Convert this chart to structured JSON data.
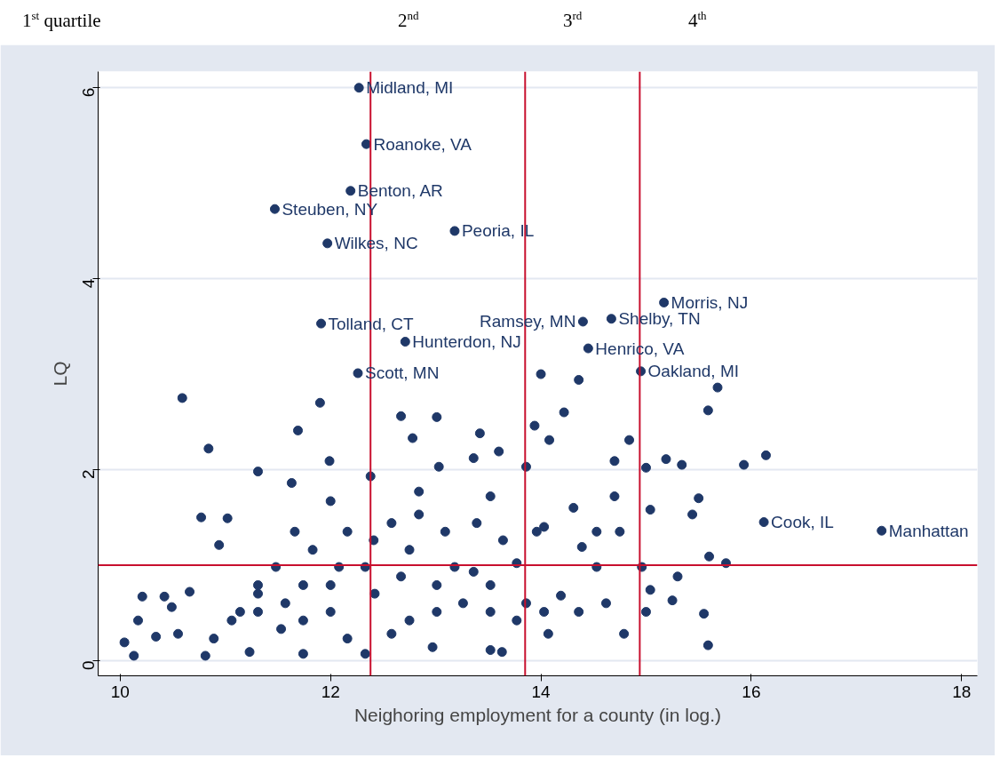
{
  "chart_data": {
    "type": "scatter",
    "xlabel": "Neighoring employment for a county (in log.)",
    "ylabel": "LQ",
    "xlim": [
      9.79,
      18.15
    ],
    "ylim": [
      -0.16,
      6.17
    ],
    "xticks": [
      10,
      12,
      14,
      16,
      18
    ],
    "yticks": [
      0,
      2,
      4,
      6
    ],
    "grid": "y",
    "marker": "circle",
    "ref_lines": [
      {
        "axis": "x",
        "value": 12.38,
        "color": "#c8102e"
      },
      {
        "axis": "x",
        "value": 13.85,
        "color": "#c8102e"
      },
      {
        "axis": "x",
        "value": 14.94,
        "color": "#c8102e"
      },
      {
        "axis": "y",
        "value": 1,
        "color": "#c8102e"
      }
    ],
    "annotations": [
      "1$^{st}$ quartile",
      "2$^{nd}$",
      "3$^{rd}$",
      "4$^{th}$",
      {
        "text": "Midland, MI",
        "x": 12.27,
        "y": 6.0
      },
      {
        "text": "Roanoke, VA",
        "x": 12.34,
        "y": 5.41
      },
      {
        "text": "Benton, AR",
        "x": 12.19,
        "y": 4.92
      },
      {
        "text": "Steuben, NY",
        "x": 11.47,
        "y": 4.73
      },
      {
        "text": "Wilkes, NC",
        "x": 11.97,
        "y": 4.37
      },
      {
        "text": "Peoria, IL",
        "x": 13.18,
        "y": 4.5
      },
      {
        "text": "Morris, NJ",
        "x": 15.17,
        "y": 3.75
      },
      {
        "text": "Shelby, TN",
        "x": 14.67,
        "y": 3.58
      },
      {
        "text": "Ramsey, MN",
        "x": 14.4,
        "y": 3.55
      },
      {
        "text": "Tolland, CT",
        "x": 11.91,
        "y": 3.53
      },
      {
        "text": "Hunterdon, NJ",
        "x": 12.71,
        "y": 3.34
      },
      {
        "text": "Henrico, VA",
        "x": 14.45,
        "y": 3.27
      },
      {
        "text": "Oakland, MI",
        "x": 14.95,
        "y": 3.03
      },
      {
        "text": "Scott, MN",
        "x": 12.26,
        "y": 3.01
      },
      {
        "text": "Cook, IL",
        "x": 16.12,
        "y": 1.45
      },
      {
        "text": "Manhattan",
        "x": 17.24,
        "y": 1.36
      }
    ],
    "series": [
      {
        "color": "#1f3868",
        "x": [
          12.27,
          12.34,
          12.19,
          11.47,
          11.97,
          13.18,
          15.17,
          14.67,
          14.4,
          11.91,
          12.71,
          14.45,
          14.95,
          12.26,
          16.12,
          17.24,
          10.59,
          10.84,
          11.69,
          11.9,
          12.67,
          13.01,
          13.42,
          14.0,
          14.36,
          14.22,
          15.68,
          15.59,
          15.93,
          16.14,
          15.6,
          15.76,
          15.55,
          15.59,
          10.77,
          11.02,
          10.94,
          11.31,
          11.99,
          12.78,
          13.36,
          13.6,
          13.94,
          14.08,
          14.84,
          15.19,
          15.34,
          15.0,
          15.5,
          15.44,
          15.04,
          14.75,
          14.31,
          14.39,
          13.86,
          13.03,
          12.38,
          11.63,
          12.41,
          12.08,
          12.75,
          13.36,
          13.77,
          14.53,
          14.96,
          15.25,
          15.0,
          14.79,
          14.07,
          14.19,
          13.52,
          13.63,
          12.97,
          12.33,
          11.74,
          11.23,
          10.81,
          10.13,
          10.04,
          10.21,
          10.42,
          10.66,
          10.49,
          10.17,
          10.34,
          10.55,
          10.89,
          11.06,
          11.31,
          11.53,
          11.74,
          12.0,
          12.16,
          12.58,
          12.75,
          13.01,
          13.26,
          13.52,
          13.77,
          13.86,
          14.03,
          14.36,
          14.62,
          15.04,
          15.3,
          11.74,
          11.57,
          12.0,
          12.42,
          12.67,
          13.01,
          13.18,
          13.52,
          11.31,
          11.14,
          11.83,
          12.16,
          12.58,
          12.84,
          13.09,
          13.39,
          13.64,
          14.03,
          14.53,
          14.7,
          13.52,
          12.84,
          12.0,
          11.66,
          11.48,
          11.31,
          12.33,
          13.96,
          14.7
        ],
        "values": [
          6.0,
          5.41,
          4.92,
          4.73,
          4.37,
          4.5,
          3.75,
          3.58,
          3.55,
          3.53,
          3.34,
          3.27,
          3.03,
          3.01,
          1.45,
          1.36,
          2.75,
          2.22,
          2.41,
          2.7,
          2.56,
          2.55,
          2.38,
          3.0,
          2.94,
          2.6,
          2.86,
          2.62,
          2.05,
          2.15,
          1.09,
          1.02,
          0.49,
          0.16,
          1.5,
          1.49,
          1.21,
          1.98,
          2.09,
          2.33,
          2.12,
          2.19,
          2.46,
          2.31,
          2.31,
          2.11,
          2.05,
          2.02,
          1.7,
          1.53,
          1.58,
          1.35,
          1.6,
          1.19,
          2.03,
          2.03,
          1.93,
          1.86,
          1.26,
          0.98,
          1.16,
          0.93,
          1.02,
          0.98,
          0.98,
          0.63,
          0.51,
          0.28,
          0.28,
          0.68,
          0.11,
          0.09,
          0.14,
          0.07,
          0.07,
          0.09,
          0.05,
          0.05,
          0.19,
          0.67,
          0.67,
          0.72,
          0.56,
          0.42,
          0.25,
          0.28,
          0.23,
          0.42,
          0.51,
          0.33,
          0.42,
          0.51,
          0.23,
          0.28,
          0.42,
          0.51,
          0.6,
          0.51,
          0.42,
          0.6,
          0.51,
          0.51,
          0.6,
          0.74,
          0.88,
          0.79,
          0.6,
          0.79,
          0.7,
          0.88,
          0.79,
          0.98,
          0.79,
          0.7,
          0.51,
          1.16,
          1.35,
          1.44,
          1.53,
          1.35,
          1.44,
          1.26,
          1.4,
          1.35,
          1.72,
          1.72,
          1.77,
          1.67,
          1.35,
          0.98,
          0.79,
          0.98,
          1.35,
          2.09
        ]
      }
    ]
  }
}
